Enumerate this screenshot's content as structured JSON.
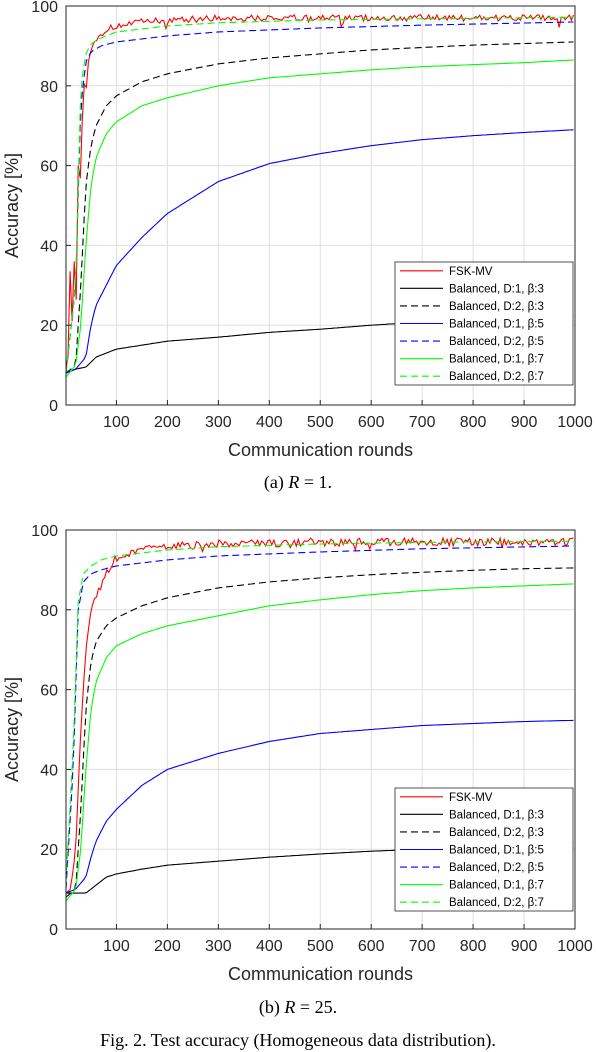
{
  "chart_data": [
    {
      "type": "line",
      "xlabel": "Communication rounds",
      "ylabel": "Accuracy [%]",
      "xlim": [
        1,
        1000
      ],
      "ylim": [
        0,
        100
      ],
      "xticks": [
        100,
        200,
        300,
        400,
        500,
        600,
        700,
        800,
        900,
        1000
      ],
      "yticks": [
        0,
        20,
        40,
        60,
        80,
        100
      ],
      "grid": true,
      "legend_position": "bottom-right",
      "caption": {
        "prefix": "(a)",
        "var": "R",
        "rest": " = 1."
      },
      "series": [
        {
          "name": "FSK-MV",
          "color": "#ff0000",
          "dash": "solid",
          "points": [
            [
              1,
              9
            ],
            [
              5,
              12
            ],
            [
              8,
              40
            ],
            [
              12,
              14
            ],
            [
              16,
              42
            ],
            [
              20,
              18
            ],
            [
              25,
              60
            ],
            [
              30,
              56
            ],
            [
              35,
              82
            ],
            [
              40,
              78
            ],
            [
              45,
              86
            ],
            [
              50,
              89
            ],
            [
              60,
              92
            ],
            [
              70,
              93
            ],
            [
              80,
              94
            ],
            [
              100,
              95
            ],
            [
              150,
              96
            ],
            [
              200,
              96.5
            ],
            [
              300,
              97
            ],
            [
              500,
              97
            ],
            [
              700,
              97
            ],
            [
              900,
              97
            ],
            [
              1000,
              97
            ]
          ],
          "noise": 0.8
        },
        {
          "name": "Balanced, D:1, β:3",
          "color": "#000000",
          "dash": "solid",
          "points": [
            [
              1,
              8
            ],
            [
              20,
              9
            ],
            [
              40,
              9.5
            ],
            [
              60,
              12
            ],
            [
              80,
              13
            ],
            [
              100,
              14
            ],
            [
              150,
              15
            ],
            [
              200,
              16
            ],
            [
              300,
              17
            ],
            [
              400,
              18.2
            ],
            [
              500,
              19
            ],
            [
              600,
              20
            ],
            [
              700,
              20.8
            ],
            [
              800,
              21.4
            ],
            [
              900,
              22
            ],
            [
              1000,
              22.5
            ]
          ],
          "noise": 0
        },
        {
          "name": "Balanced, D:2, β:3",
          "color": "#000000",
          "dash": "dashed",
          "points": [
            [
              1,
              8
            ],
            [
              20,
              10
            ],
            [
              30,
              30
            ],
            [
              40,
              55
            ],
            [
              50,
              65
            ],
            [
              60,
              70
            ],
            [
              80,
              75
            ],
            [
              100,
              77.5
            ],
            [
              150,
              81
            ],
            [
              200,
              83
            ],
            [
              300,
              85.5
            ],
            [
              400,
              87
            ],
            [
              500,
              88
            ],
            [
              600,
              89
            ],
            [
              700,
              89.6
            ],
            [
              800,
              90.2
            ],
            [
              900,
              90.6
            ],
            [
              1000,
              91
            ]
          ],
          "noise": 0
        },
        {
          "name": "Balanced, D:1, β:5",
          "color": "#0000ff",
          "dash": "solid",
          "points": [
            [
              1,
              8
            ],
            [
              20,
              9
            ],
            [
              40,
              12
            ],
            [
              50,
              20
            ],
            [
              60,
              25
            ],
            [
              80,
              30
            ],
            [
              100,
              35
            ],
            [
              150,
              42
            ],
            [
              200,
              48
            ],
            [
              300,
              56
            ],
            [
              400,
              60.5
            ],
            [
              500,
              63
            ],
            [
              600,
              65
            ],
            [
              700,
              66.5
            ],
            [
              800,
              67.5
            ],
            [
              900,
              68.3
            ],
            [
              1000,
              69
            ]
          ],
          "noise": 0
        },
        {
          "name": "Balanced, D:2, β:5",
          "color": "#0000ff",
          "dash": "dashed",
          "points": [
            [
              1,
              8
            ],
            [
              20,
              30
            ],
            [
              30,
              75
            ],
            [
              40,
              86
            ],
            [
              50,
              88.5
            ],
            [
              70,
              90
            ],
            [
              100,
              91
            ],
            [
              200,
              92.5
            ],
            [
              300,
              93.5
            ],
            [
              500,
              94.5
            ],
            [
              700,
              95.2
            ],
            [
              1000,
              96
            ]
          ],
          "noise": 0
        },
        {
          "name": "Balanced, D:1, β:7",
          "color": "#00ff00",
          "dash": "solid",
          "points": [
            [
              1,
              7
            ],
            [
              20,
              10
            ],
            [
              30,
              20
            ],
            [
              40,
              40
            ],
            [
              50,
              55
            ],
            [
              60,
              62
            ],
            [
              80,
              68
            ],
            [
              100,
              71
            ],
            [
              150,
              75
            ],
            [
              200,
              77
            ],
            [
              300,
              80
            ],
            [
              400,
              82
            ],
            [
              500,
              83
            ],
            [
              600,
              84
            ],
            [
              700,
              84.8
            ],
            [
              800,
              85.3
            ],
            [
              900,
              85.8
            ],
            [
              1000,
              86.5
            ]
          ],
          "noise": 0
        },
        {
          "name": "Balanced, D:2, β:7",
          "color": "#00ff00",
          "dash": "dashed",
          "points": [
            [
              1,
              8
            ],
            [
              20,
              30
            ],
            [
              30,
              80
            ],
            [
              40,
              88
            ],
            [
              50,
              90.5
            ],
            [
              70,
              92
            ],
            [
              100,
              93.5
            ],
            [
              200,
              95
            ],
            [
              300,
              95.8
            ],
            [
              500,
              96.5
            ],
            [
              700,
              96.8
            ],
            [
              1000,
              97.2
            ]
          ],
          "noise": 0
        }
      ]
    },
    {
      "type": "line",
      "xlabel": "Communication rounds",
      "ylabel": "Accuracy [%]",
      "xlim": [
        1,
        1000
      ],
      "ylim": [
        0,
        100
      ],
      "xticks": [
        100,
        200,
        300,
        400,
        500,
        600,
        700,
        800,
        900,
        1000
      ],
      "yticks": [
        0,
        20,
        40,
        60,
        80,
        100
      ],
      "grid": true,
      "legend_position": "bottom-right",
      "caption": {
        "prefix": "(b)",
        "var": "R",
        "rest": " = 25."
      },
      "series": [
        {
          "name": "FSK-MV",
          "color": "#ff0000",
          "dash": "solid",
          "points": [
            [
              1,
              9
            ],
            [
              10,
              10
            ],
            [
              20,
              20
            ],
            [
              30,
              50
            ],
            [
              40,
              70
            ],
            [
              50,
              80
            ],
            [
              60,
              84
            ],
            [
              70,
              86
            ],
            [
              80,
              90
            ],
            [
              100,
              93
            ],
            [
              150,
              95
            ],
            [
              200,
              96
            ],
            [
              300,
              96.5
            ],
            [
              500,
              97
            ],
            [
              1000,
              97
            ]
          ],
          "noise": 1.0
        },
        {
          "name": "Balanced, D:1, β:3",
          "color": "#000000",
          "dash": "solid",
          "points": [
            [
              1,
              9
            ],
            [
              20,
              9
            ],
            [
              40,
              9
            ],
            [
              60,
              11
            ],
            [
              80,
              13
            ],
            [
              100,
              13.8
            ],
            [
              150,
              15
            ],
            [
              200,
              16
            ],
            [
              300,
              17
            ],
            [
              400,
              18
            ],
            [
              500,
              18.8
            ],
            [
              600,
              19.5
            ],
            [
              700,
              20
            ],
            [
              800,
              20.5
            ],
            [
              900,
              21
            ],
            [
              1000,
              21.6
            ]
          ],
          "noise": 0
        },
        {
          "name": "Balanced, D:2, β:3",
          "color": "#000000",
          "dash": "dashed",
          "points": [
            [
              1,
              8
            ],
            [
              20,
              10
            ],
            [
              30,
              30
            ],
            [
              40,
              55
            ],
            [
              50,
              67
            ],
            [
              60,
              72
            ],
            [
              80,
              76
            ],
            [
              100,
              78
            ],
            [
              150,
              81
            ],
            [
              200,
              83
            ],
            [
              300,
              85.5
            ],
            [
              400,
              87
            ],
            [
              500,
              88
            ],
            [
              600,
              88.8
            ],
            [
              700,
              89.4
            ],
            [
              800,
              89.9
            ],
            [
              900,
              90.3
            ],
            [
              1000,
              90.5
            ]
          ],
          "noise": 0
        },
        {
          "name": "Balanced, D:1, β:5",
          "color": "#0000ff",
          "dash": "solid",
          "points": [
            [
              1,
              9
            ],
            [
              20,
              10
            ],
            [
              40,
              13
            ],
            [
              50,
              18
            ],
            [
              60,
              22
            ],
            [
              80,
              27
            ],
            [
              100,
              30
            ],
            [
              150,
              36
            ],
            [
              200,
              40
            ],
            [
              300,
              44
            ],
            [
              400,
              47
            ],
            [
              500,
              49
            ],
            [
              600,
              50
            ],
            [
              700,
              51
            ],
            [
              800,
              51.5
            ],
            [
              900,
              52
            ],
            [
              1000,
              52.3
            ]
          ],
          "noise": 0
        },
        {
          "name": "Balanced, D:2, β:5",
          "color": "#0000ff",
          "dash": "dashed",
          "points": [
            [
              1,
              10
            ],
            [
              15,
              40
            ],
            [
              25,
              80
            ],
            [
              35,
              87
            ],
            [
              50,
              89
            ],
            [
              70,
              90
            ],
            [
              100,
              91
            ],
            [
              200,
              92.5
            ],
            [
              300,
              93.5
            ],
            [
              500,
              94.5
            ],
            [
              700,
              95.3
            ],
            [
              1000,
              96
            ]
          ],
          "noise": 0
        },
        {
          "name": "Balanced, D:1, β:7",
          "color": "#00ff00",
          "dash": "solid",
          "points": [
            [
              1,
              7
            ],
            [
              20,
              10
            ],
            [
              30,
              20
            ],
            [
              40,
              40
            ],
            [
              50,
              55
            ],
            [
              60,
              62
            ],
            [
              80,
              68
            ],
            [
              100,
              71
            ],
            [
              150,
              74
            ],
            [
              200,
              76
            ],
            [
              300,
              78.5
            ],
            [
              400,
              81
            ],
            [
              500,
              82.5
            ],
            [
              600,
              83.8
            ],
            [
              700,
              84.8
            ],
            [
              800,
              85.5
            ],
            [
              900,
              86
            ],
            [
              1000,
              86.5
            ]
          ],
          "noise": 0
        },
        {
          "name": "Balanced, D:2, β:7",
          "color": "#00ff00",
          "dash": "dashed",
          "points": [
            [
              1,
              12
            ],
            [
              15,
              45
            ],
            [
              25,
              82
            ],
            [
              35,
              89
            ],
            [
              50,
              91
            ],
            [
              70,
              92.5
            ],
            [
              100,
              93.5
            ],
            [
              200,
              95
            ],
            [
              300,
              95.8
            ],
            [
              500,
              96.5
            ],
            [
              700,
              96.9
            ],
            [
              1000,
              97.2
            ]
          ],
          "noise": 0
        }
      ]
    }
  ],
  "figure_caption": "Fig. 2.  Test accuracy (Homogeneous data distribution)."
}
